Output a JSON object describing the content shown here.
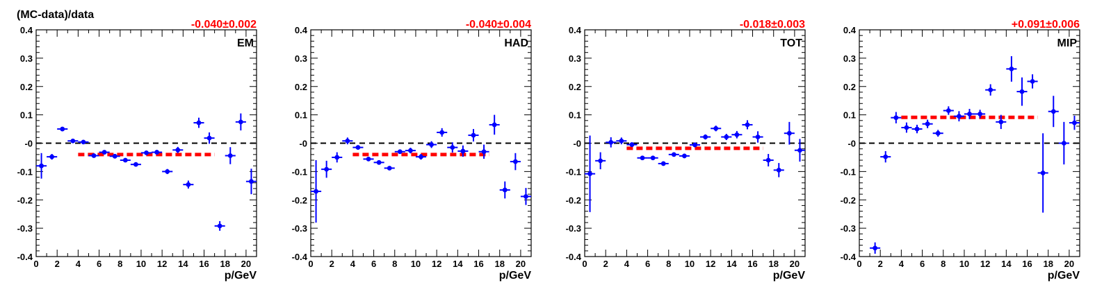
{
  "figure": {
    "y_axis_title": "(MC-data)/data"
  },
  "chart_data": [
    {
      "type": "scatter",
      "label": "EM",
      "fit_text": "-0.040±0.002",
      "xlabel": "p/GeV",
      "ylabel": "(MC-data)/data",
      "xlim": [
        0,
        21
      ],
      "ylim": [
        -0.4,
        0.4
      ],
      "x_ticks": [
        "0",
        "2",
        "4",
        "6",
        "8",
        "10",
        "12",
        "14",
        "16",
        "18",
        "20"
      ],
      "y_ticks": [
        "-0.4",
        "-0.3",
        "-0.2",
        "-0.1",
        "-0",
        "0.1",
        "0.2",
        "0.3",
        "0.4"
      ],
      "reference_line": 0,
      "fit": {
        "value": -0.04,
        "x_range": [
          4,
          17
        ]
      },
      "colors": {
        "points": "#0000ff",
        "fit": "#ff0000",
        "reference": "#000000"
      },
      "points": [
        {
          "x": 0.5,
          "y": -0.08,
          "ey": 0.045
        },
        {
          "x": 1.5,
          "y": -0.048,
          "ey": 0.01
        },
        {
          "x": 2.5,
          "y": 0.05,
          "ey": 0.006
        },
        {
          "x": 3.5,
          "y": 0.008,
          "ey": 0.005
        },
        {
          "x": 4.5,
          "y": 0.004,
          "ey": 0.004
        },
        {
          "x": 5.5,
          "y": -0.044,
          "ey": 0.005
        },
        {
          "x": 6.5,
          "y": -0.032,
          "ey": 0.005
        },
        {
          "x": 7.5,
          "y": -0.046,
          "ey": 0.005
        },
        {
          "x": 8.5,
          "y": -0.06,
          "ey": 0.006
        },
        {
          "x": 9.5,
          "y": -0.075,
          "ey": 0.007
        },
        {
          "x": 10.5,
          "y": -0.034,
          "ey": 0.007
        },
        {
          "x": 11.5,
          "y": -0.032,
          "ey": 0.008
        },
        {
          "x": 12.5,
          "y": -0.1,
          "ey": 0.009
        },
        {
          "x": 13.5,
          "y": -0.024,
          "ey": 0.011
        },
        {
          "x": 14.5,
          "y": -0.146,
          "ey": 0.014
        },
        {
          "x": 15.5,
          "y": 0.072,
          "ey": 0.018
        },
        {
          "x": 16.5,
          "y": 0.018,
          "ey": 0.02
        },
        {
          "x": 17.5,
          "y": -0.292,
          "ey": 0.017
        },
        {
          "x": 18.5,
          "y": -0.044,
          "ey": 0.03
        },
        {
          "x": 19.5,
          "y": 0.075,
          "ey": 0.03
        },
        {
          "x": 20.5,
          "y": -0.135,
          "ey": 0.045
        }
      ]
    },
    {
      "type": "scatter",
      "label": "HAD",
      "fit_text": "-0.040±0.004",
      "xlabel": "p/GeV",
      "ylabel": "(MC-data)/data",
      "xlim": [
        0,
        21
      ],
      "ylim": [
        -0.4,
        0.4
      ],
      "x_ticks": [
        "0",
        "2",
        "4",
        "6",
        "8",
        "10",
        "12",
        "14",
        "16",
        "18",
        "20"
      ],
      "y_ticks": [
        "-0.4",
        "-0.3",
        "-0.2",
        "-0.1",
        "-0",
        "0.1",
        "0.2",
        "0.3",
        "0.4"
      ],
      "reference_line": 0,
      "fit": {
        "value": -0.04,
        "x_range": [
          4,
          17
        ]
      },
      "colors": {
        "points": "#0000ff",
        "fit": "#ff0000",
        "reference": "#000000"
      },
      "points": [
        {
          "x": 0.5,
          "y": -0.17,
          "ey": 0.11
        },
        {
          "x": 1.5,
          "y": -0.092,
          "ey": 0.03
        },
        {
          "x": 2.5,
          "y": -0.05,
          "ey": 0.018
        },
        {
          "x": 3.5,
          "y": 0.008,
          "ey": 0.012
        },
        {
          "x": 4.5,
          "y": -0.015,
          "ey": 0.008
        },
        {
          "x": 5.5,
          "y": -0.056,
          "ey": 0.007
        },
        {
          "x": 6.5,
          "y": -0.068,
          "ey": 0.006
        },
        {
          "x": 7.5,
          "y": -0.088,
          "ey": 0.006
        },
        {
          "x": 8.5,
          "y": -0.03,
          "ey": 0.008
        },
        {
          "x": 9.5,
          "y": -0.026,
          "ey": 0.01
        },
        {
          "x": 10.5,
          "y": -0.048,
          "ey": 0.01
        },
        {
          "x": 11.5,
          "y": -0.005,
          "ey": 0.012
        },
        {
          "x": 12.5,
          "y": 0.038,
          "ey": 0.015
        },
        {
          "x": 13.5,
          "y": -0.015,
          "ey": 0.018
        },
        {
          "x": 14.5,
          "y": -0.028,
          "ey": 0.02
        },
        {
          "x": 15.5,
          "y": 0.028,
          "ey": 0.022
        },
        {
          "x": 16.5,
          "y": -0.03,
          "ey": 0.025
        },
        {
          "x": 17.5,
          "y": 0.065,
          "ey": 0.035
        },
        {
          "x": 18.5,
          "y": -0.165,
          "ey": 0.03
        },
        {
          "x": 19.5,
          "y": -0.065,
          "ey": 0.03
        },
        {
          "x": 20.5,
          "y": -0.188,
          "ey": 0.03
        }
      ]
    },
    {
      "type": "scatter",
      "label": "TOT",
      "fit_text": "-0.018±0.003",
      "xlabel": "p/GeV",
      "ylabel": "(MC-data)/data",
      "xlim": [
        0,
        21
      ],
      "ylim": [
        -0.4,
        0.4
      ],
      "x_ticks": [
        "0",
        "2",
        "4",
        "6",
        "8",
        "10",
        "12",
        "14",
        "16",
        "18",
        "20"
      ],
      "y_ticks": [
        "-0.4",
        "-0.3",
        "-0.2",
        "-0.1",
        "-0",
        "0.1",
        "0.2",
        "0.3",
        "0.4"
      ],
      "reference_line": 0,
      "fit": {
        "value": -0.018,
        "x_range": [
          4,
          17
        ]
      },
      "colors": {
        "points": "#0000ff",
        "fit": "#ff0000",
        "reference": "#000000"
      },
      "points": [
        {
          "x": 0.5,
          "y": -0.108,
          "ey": 0.135
        },
        {
          "x": 1.5,
          "y": -0.062,
          "ey": 0.03
        },
        {
          "x": 2.5,
          "y": 0.003,
          "ey": 0.018
        },
        {
          "x": 3.5,
          "y": 0.008,
          "ey": 0.012
        },
        {
          "x": 4.5,
          "y": -0.005,
          "ey": 0.008
        },
        {
          "x": 5.5,
          "y": -0.052,
          "ey": 0.007
        },
        {
          "x": 6.5,
          "y": -0.052,
          "ey": 0.007
        },
        {
          "x": 7.5,
          "y": -0.072,
          "ey": 0.007
        },
        {
          "x": 8.5,
          "y": -0.04,
          "ey": 0.007
        },
        {
          "x": 9.5,
          "y": -0.045,
          "ey": 0.008
        },
        {
          "x": 10.5,
          "y": -0.006,
          "ey": 0.008
        },
        {
          "x": 11.5,
          "y": 0.022,
          "ey": 0.009
        },
        {
          "x": 12.5,
          "y": 0.052,
          "ey": 0.01
        },
        {
          "x": 13.5,
          "y": 0.022,
          "ey": 0.011
        },
        {
          "x": 14.5,
          "y": 0.03,
          "ey": 0.013
        },
        {
          "x": 15.5,
          "y": 0.065,
          "ey": 0.016
        },
        {
          "x": 16.5,
          "y": 0.022,
          "ey": 0.02
        },
        {
          "x": 17.5,
          "y": -0.06,
          "ey": 0.022
        },
        {
          "x": 18.5,
          "y": -0.095,
          "ey": 0.025
        },
        {
          "x": 19.5,
          "y": 0.035,
          "ey": 0.04
        },
        {
          "x": 20.5,
          "y": -0.025,
          "ey": 0.04
        }
      ]
    },
    {
      "type": "scatter",
      "label": "MIP",
      "fit_text": "+0.091±0.006",
      "xlabel": "p/GeV",
      "ylabel": "(MC-data)/data",
      "xlim": [
        0,
        21
      ],
      "ylim": [
        -0.4,
        0.4
      ],
      "x_ticks": [
        "0",
        "2",
        "4",
        "6",
        "8",
        "10",
        "12",
        "14",
        "16",
        "18",
        "20"
      ],
      "y_ticks": [
        "-0.4",
        "-0.3",
        "-0.2",
        "-0.1",
        "-0",
        "0.1",
        "0.2",
        "0.3",
        "0.4"
      ],
      "reference_line": 0,
      "fit": {
        "value": 0.091,
        "x_range": [
          4,
          17
        ]
      },
      "colors": {
        "points": "#0000ff",
        "fit": "#ff0000",
        "reference": "#000000"
      },
      "points": [
        {
          "x": 1.5,
          "y": -0.37,
          "ey": 0.02
        },
        {
          "x": 2.5,
          "y": -0.048,
          "ey": 0.02
        },
        {
          "x": 3.5,
          "y": 0.09,
          "ey": 0.02
        },
        {
          "x": 4.5,
          "y": 0.055,
          "ey": 0.018
        },
        {
          "x": 5.5,
          "y": 0.05,
          "ey": 0.015
        },
        {
          "x": 6.5,
          "y": 0.068,
          "ey": 0.015
        },
        {
          "x": 7.5,
          "y": 0.035,
          "ey": 0.012
        },
        {
          "x": 8.5,
          "y": 0.115,
          "ey": 0.015
        },
        {
          "x": 9.5,
          "y": 0.095,
          "ey": 0.018
        },
        {
          "x": 10.5,
          "y": 0.103,
          "ey": 0.018
        },
        {
          "x": 11.5,
          "y": 0.103,
          "ey": 0.015
        },
        {
          "x": 12.5,
          "y": 0.188,
          "ey": 0.02
        },
        {
          "x": 13.5,
          "y": 0.075,
          "ey": 0.025
        },
        {
          "x": 14.5,
          "y": 0.262,
          "ey": 0.045
        },
        {
          "x": 15.5,
          "y": 0.182,
          "ey": 0.05
        },
        {
          "x": 16.5,
          "y": 0.218,
          "ey": 0.025
        },
        {
          "x": 17.5,
          "y": -0.105,
          "ey": 0.14
        },
        {
          "x": 18.5,
          "y": 0.112,
          "ey": 0.055
        },
        {
          "x": 19.5,
          "y": 0.0,
          "ey": 0.075
        },
        {
          "x": 20.5,
          "y": 0.072,
          "ey": 0.025
        }
      ]
    }
  ]
}
